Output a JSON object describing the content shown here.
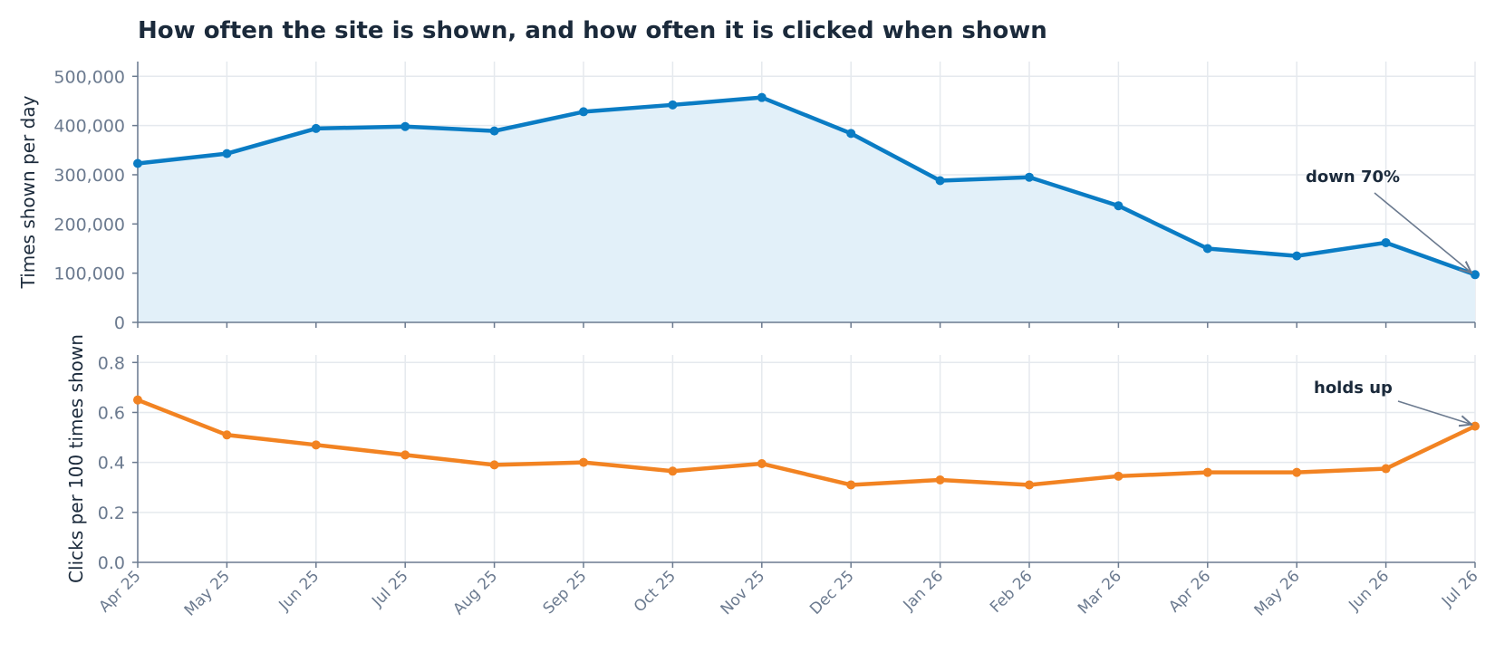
{
  "chart_data": {
    "title": "How often the site is shown, and how often it is clicked when shown",
    "x": [
      "Apr 25",
      "May 25",
      "Jun 25",
      "Jul 25",
      "Aug 25",
      "Sep 25",
      "Oct 25",
      "Nov 25",
      "Dec 25",
      "Jan 26",
      "Feb 26",
      "Mar 26",
      "Apr 26",
      "May 26",
      "Jun 26",
      "Jul 26"
    ],
    "grid": true,
    "panels": [
      {
        "type": "area",
        "ylabel": "Times shown per day",
        "ylim": [
          0,
          530000
        ],
        "yticks": [
          0,
          100000,
          200000,
          300000,
          400000,
          500000
        ],
        "ytick_labels": [
          "0",
          "100,000",
          "200,000",
          "300,000",
          "400,000",
          "500,000"
        ],
        "color": "#0a7cc4",
        "fill": "#e2f0f9",
        "values": [
          323000,
          343000,
          394000,
          398000,
          389000,
          428000,
          442000,
          457000,
          384000,
          288000,
          295000,
          237000,
          150000,
          135000,
          162000,
          97000
        ],
        "annotation": {
          "text": "down 70%",
          "point_index": 15
        }
      },
      {
        "type": "line",
        "ylabel": "Clicks per 100 times shown",
        "ylim": [
          0,
          0.83
        ],
        "yticks": [
          0,
          0.2,
          0.4,
          0.6,
          0.8
        ],
        "ytick_labels": [
          "0.0",
          "0.2",
          "0.4",
          "0.6",
          "0.8"
        ],
        "color": "#f28322",
        "values": [
          0.65,
          0.51,
          0.47,
          0.43,
          0.39,
          0.4,
          0.365,
          0.395,
          0.31,
          0.33,
          0.31,
          0.345,
          0.36,
          0.36,
          0.375,
          0.545
        ],
        "annotation": {
          "text": "holds up",
          "point_index": 15
        }
      }
    ]
  }
}
